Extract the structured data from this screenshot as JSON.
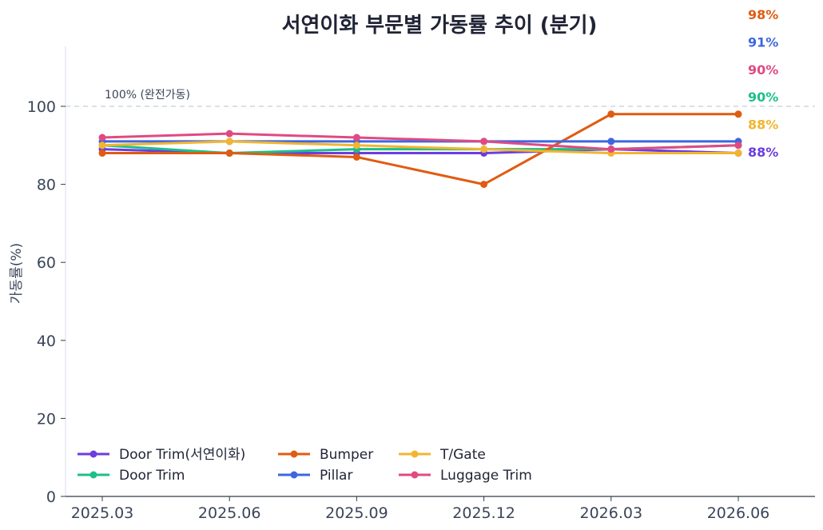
{
  "chart_data": {
    "type": "line",
    "title": "서연이화 부문별 가동률 추이 (분기)",
    "xlabel": "",
    "ylabel": "가동률(%)",
    "ylim": [
      0,
      115
    ],
    "yticks": [
      0,
      20,
      40,
      60,
      80,
      100
    ],
    "x": [
      "2025.03",
      "2025.06",
      "2025.09",
      "2025.12",
      "2026.03",
      "2026.06"
    ],
    "reference_line": {
      "value": 100,
      "label": "100% (완전가동)"
    },
    "legend_position": "bottom-left",
    "grid": false,
    "series": [
      {
        "name": "Door Trim(서연이화)",
        "color": "#6c3de0",
        "values": [
          89,
          88,
          88,
          88,
          89,
          88
        ],
        "end_label": "88%"
      },
      {
        "name": "Door Trim",
        "color": "#1dbf8a",
        "values": [
          90,
          88,
          89,
          89,
          89,
          90
        ],
        "end_label": "90%"
      },
      {
        "name": "Bumper",
        "color": "#e05c12",
        "values": [
          88,
          88,
          87,
          80,
          98,
          98
        ],
        "end_label": "98%"
      },
      {
        "name": "Pillar",
        "color": "#3e66e0",
        "values": [
          91,
          91,
          91,
          91,
          91,
          91
        ],
        "end_label": "91%"
      },
      {
        "name": "T/Gate",
        "color": "#f2b531",
        "values": [
          90,
          91,
          90,
          89,
          88,
          88
        ],
        "end_label": "88%"
      },
      {
        "name": "Luggage Trim",
        "color": "#e04a82",
        "values": [
          92,
          93,
          92,
          91,
          89,
          90
        ],
        "end_label": "90%"
      }
    ],
    "end_label_order": [
      "Bumper",
      "Pillar",
      "Luggage Trim",
      "Door Trim",
      "T/Gate",
      "Door Trim(서연이화)"
    ]
  }
}
